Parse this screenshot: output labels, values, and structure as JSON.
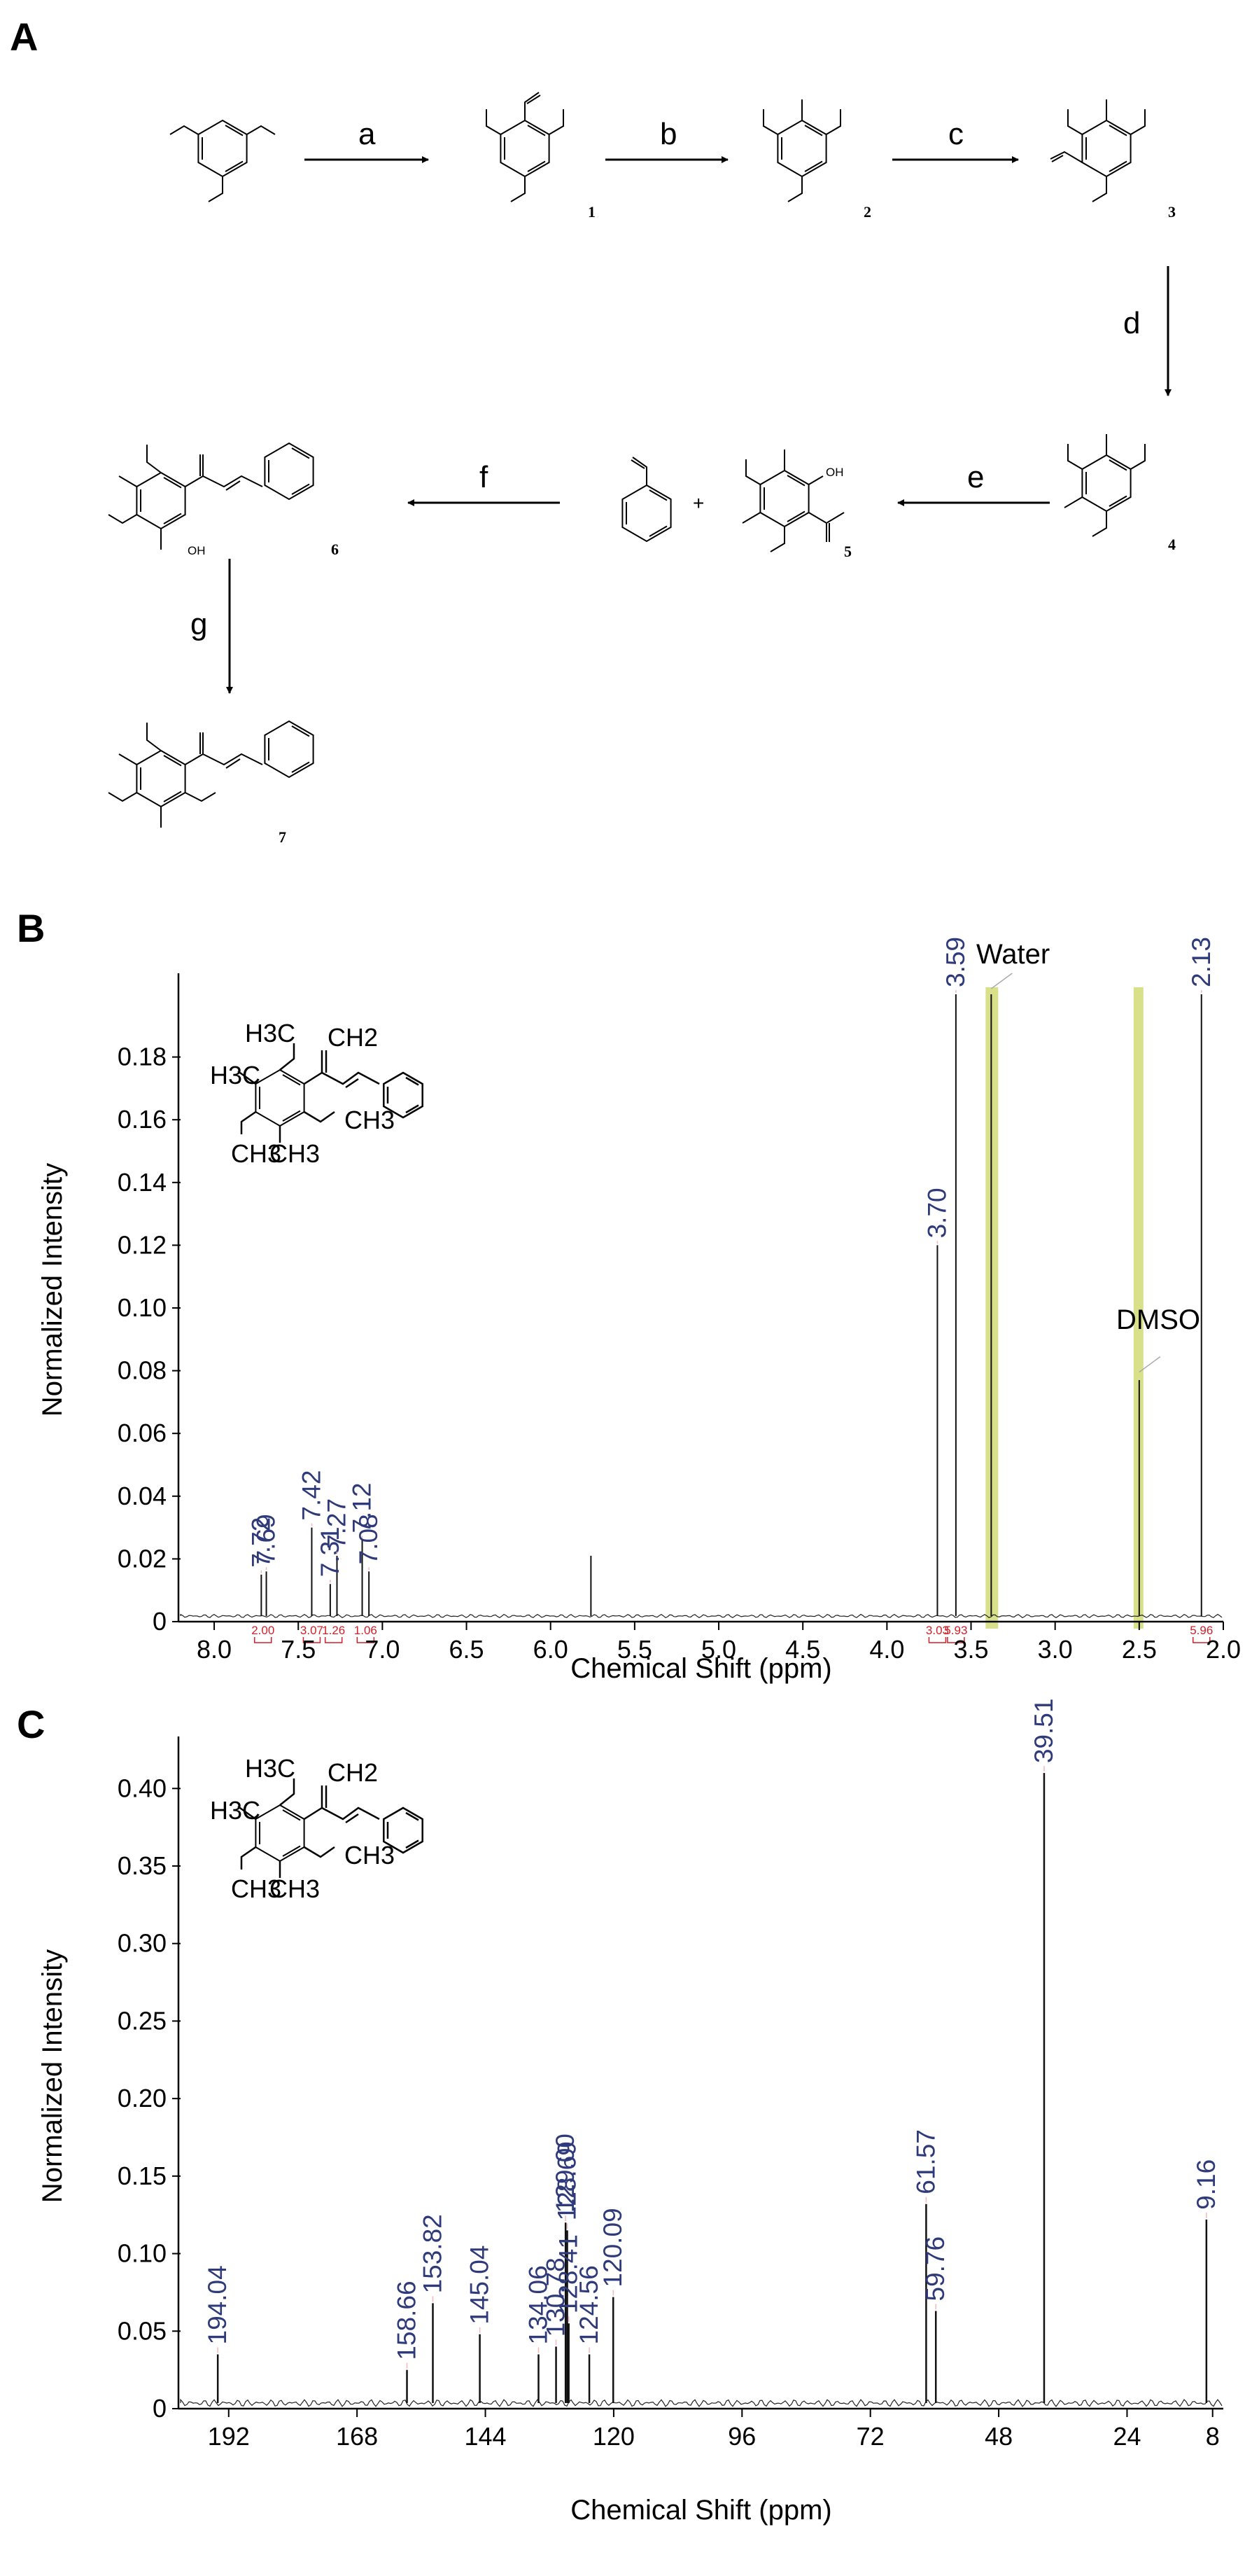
{
  "panels": {
    "a": "A",
    "b": "B",
    "c": "C"
  },
  "scheme": {
    "compound_numbers": [
      "1",
      "2",
      "3",
      "4",
      "5",
      "6",
      "7"
    ],
    "reaction_steps": [
      "a",
      "b",
      "c",
      "d",
      "e",
      "f",
      "g"
    ],
    "plus_sign": "+",
    "atom_labels": {
      "oh": "OH"
    }
  },
  "structure": {
    "h3c": "H3C",
    "ch2": "CH2",
    "ch3": "CH3"
  },
  "chart_data": [
    {
      "type": "line",
      "panel": "B",
      "xlabel": "Chemical Shift (ppm)",
      "ylabel": "Normalized Intensity",
      "xlim": [
        8.2,
        2.0
      ],
      "ylim": [
        0,
        0.2
      ],
      "x_reversed": true,
      "xticks": [
        "8.0",
        "7.5",
        "7.0",
        "6.5",
        "6.0",
        "5.5",
        "5.0",
        "4.5",
        "4.0",
        "3.5",
        "3.0",
        "2.5",
        "2.0"
      ],
      "yticks": [
        "0",
        "0.02",
        "0.04",
        "0.06",
        "0.08",
        "0.10",
        "0.12",
        "0.14",
        "0.16",
        "0.18"
      ],
      "peaks": [
        {
          "x": 7.72,
          "y": 0.015,
          "label": "7.72"
        },
        {
          "x": 7.69,
          "y": 0.016,
          "label": "7.69"
        },
        {
          "x": 7.42,
          "y": 0.03,
          "label": "7.42"
        },
        {
          "x": 7.31,
          "y": 0.012,
          "label": "7.31"
        },
        {
          "x": 7.27,
          "y": 0.021,
          "label": "7.27"
        },
        {
          "x": 7.12,
          "y": 0.026,
          "label": "7.12"
        },
        {
          "x": 7.08,
          "y": 0.016,
          "label": "7.08"
        },
        {
          "x": 3.7,
          "y": 0.12,
          "label": "3.70"
        },
        {
          "x": 3.59,
          "y": 0.2,
          "label": "3.59"
        },
        {
          "x": 2.13,
          "y": 0.2,
          "label": "2.13"
        }
      ],
      "unlabeled_peaks": [
        {
          "x": 5.76,
          "y": 0.021
        },
        {
          "x": 3.38,
          "y": 0.2
        },
        {
          "x": 2.5,
          "y": 0.077
        }
      ],
      "integrations": [
        {
          "x": 7.71,
          "label": "2.00"
        },
        {
          "x": 7.42,
          "label": "3.07"
        },
        {
          "x": 7.29,
          "label": "1.26"
        },
        {
          "x": 7.1,
          "label": "1.06"
        },
        {
          "x": 3.7,
          "label": "3.03"
        },
        {
          "x": 3.59,
          "label": "5.93"
        },
        {
          "x": 2.13,
          "label": "5.96"
        }
      ],
      "annotations": [
        {
          "text": "Water",
          "x": 3.38
        },
        {
          "text": "DMSO",
          "x": 2.5
        }
      ],
      "highlight_color": "#d9e08a",
      "peak_label_color": "#2e3a7a",
      "integration_color": "#d0202a"
    },
    {
      "type": "line",
      "panel": "C",
      "xlabel": "Chemical Shift (ppm)",
      "ylabel": "Normalized Intensity",
      "xlim": [
        201,
        6
      ],
      "ylim": [
        0,
        0.42
      ],
      "x_reversed": true,
      "xticks": [
        "192",
        "168",
        "144",
        "120",
        "96",
        "72",
        "48",
        "24",
        "8"
      ],
      "yticks": [
        "0",
        "0.05",
        "0.10",
        "0.15",
        "0.20",
        "0.25",
        "0.30",
        "0.35",
        "0.40"
      ],
      "peaks": [
        {
          "x": 194.04,
          "y": 0.035,
          "label": "194.04"
        },
        {
          "x": 158.66,
          "y": 0.025,
          "label": "158.66"
        },
        {
          "x": 153.82,
          "y": 0.068,
          "label": "153.82"
        },
        {
          "x": 145.04,
          "y": 0.048,
          "label": "145.04"
        },
        {
          "x": 134.06,
          "y": 0.035,
          "label": "134.06"
        },
        {
          "x": 130.78,
          "y": 0.04,
          "label": "130.78"
        },
        {
          "x": 129.0,
          "y": 0.12,
          "label": "129.00"
        },
        {
          "x": 128.69,
          "y": 0.115,
          "label": "128.69"
        },
        {
          "x": 128.41,
          "y": 0.055,
          "label": "128.41"
        },
        {
          "x": 124.56,
          "y": 0.035,
          "label": "124.56"
        },
        {
          "x": 120.09,
          "y": 0.072,
          "label": "120.09"
        },
        {
          "x": 61.57,
          "y": 0.132,
          "label": "61.57"
        },
        {
          "x": 59.76,
          "y": 0.063,
          "label": "59.76"
        },
        {
          "x": 39.51,
          "y": 0.41,
          "label": "39.51"
        },
        {
          "x": 9.16,
          "y": 0.122,
          "label": "9.16"
        }
      ],
      "peak_label_color": "#2e3a7a"
    }
  ]
}
